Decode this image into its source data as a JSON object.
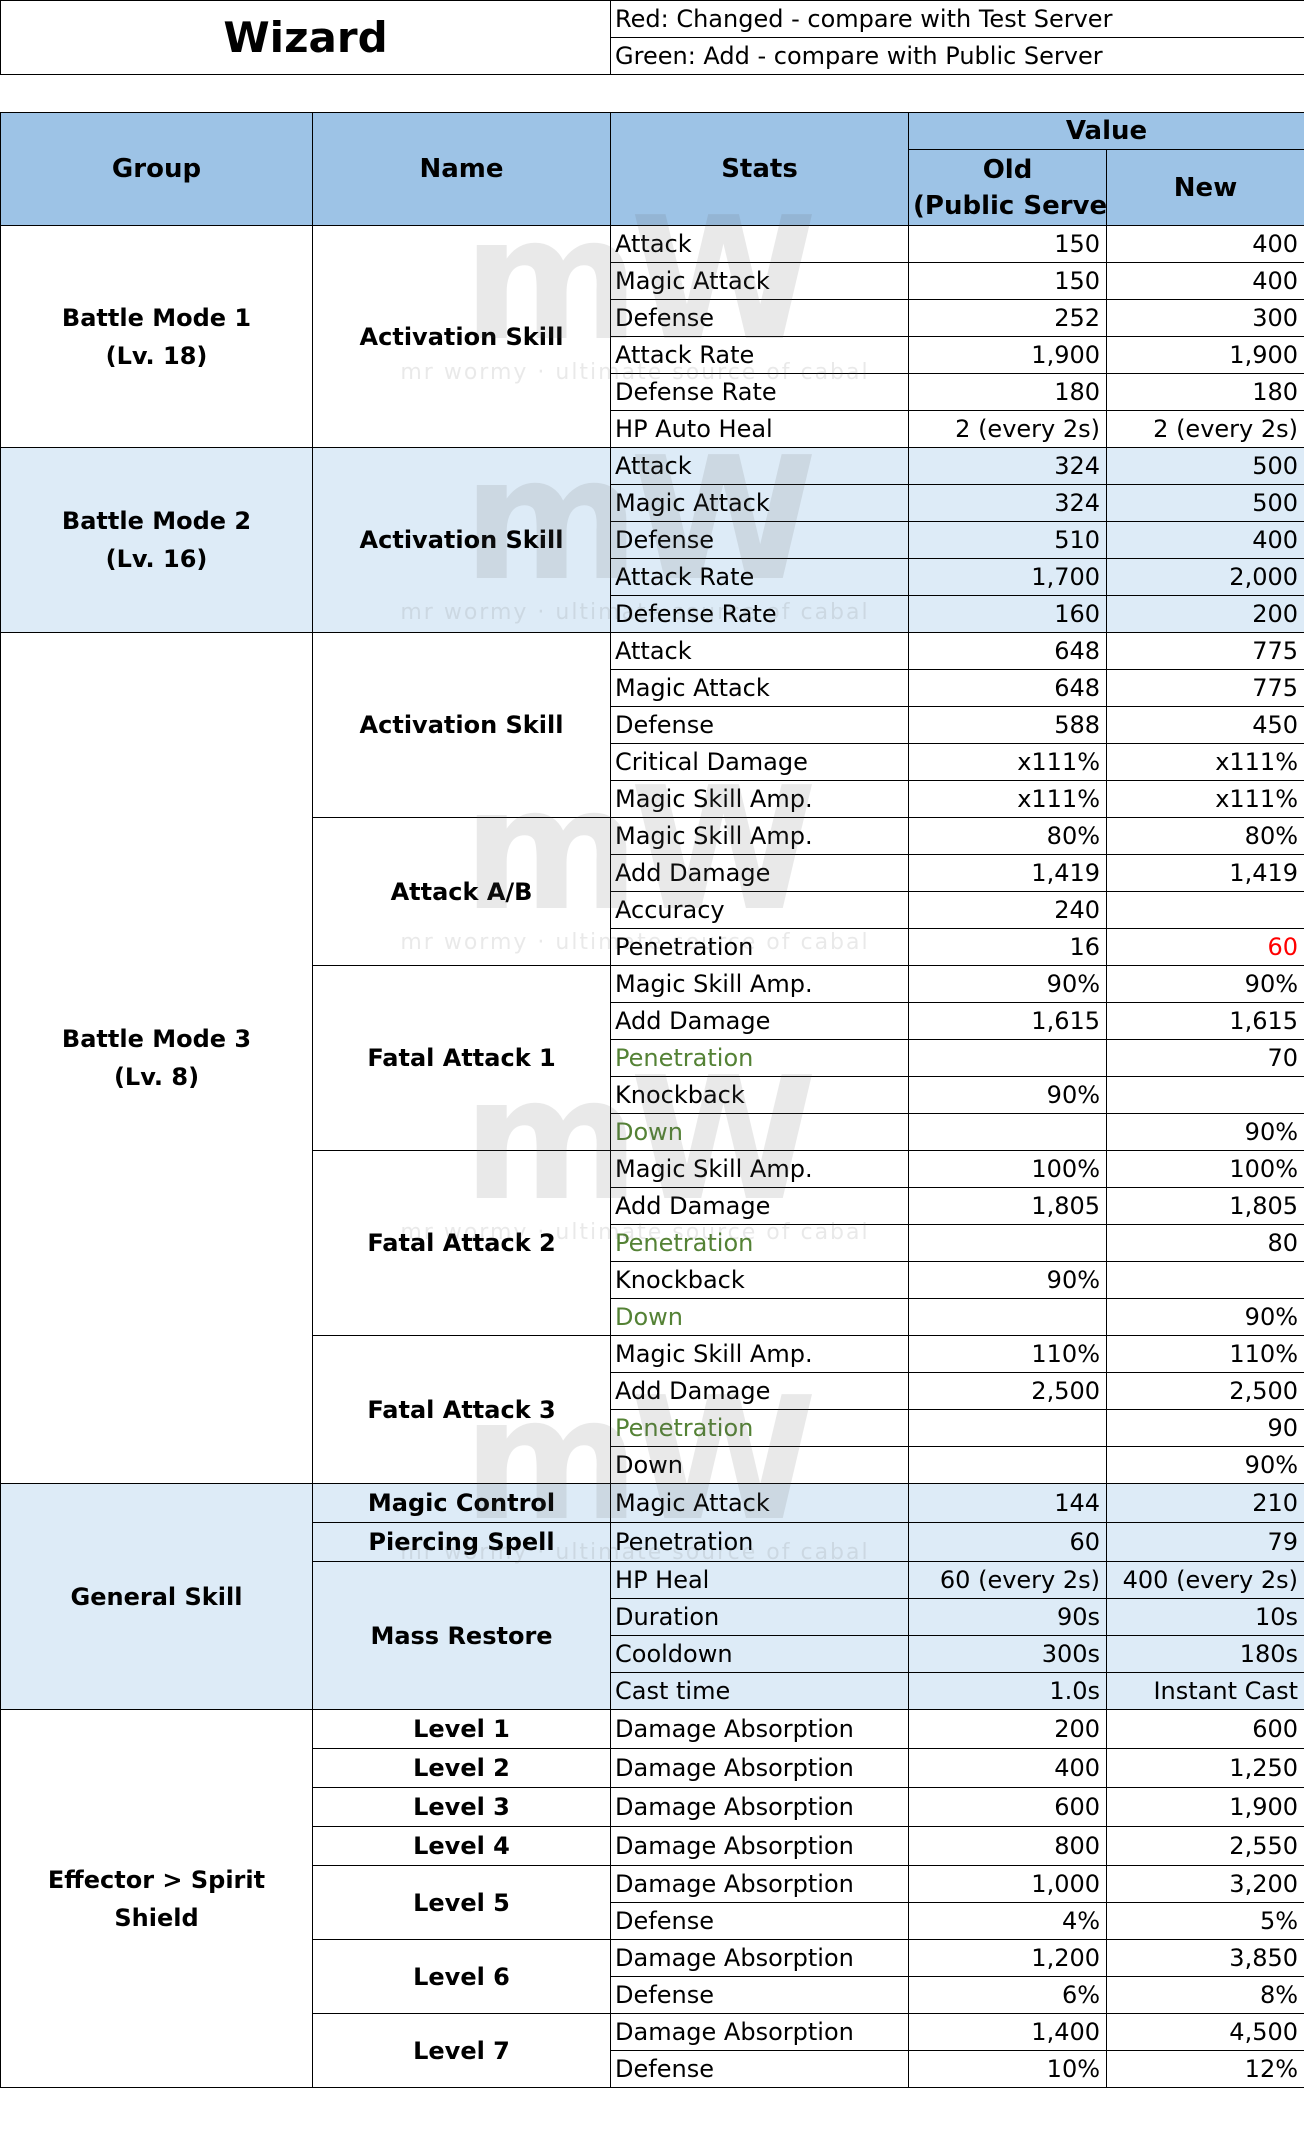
{
  "title": "Wizard",
  "legend": {
    "red": "Red: Changed - compare with Test Server",
    "green": "Green: Add - compare with Public Server"
  },
  "headers": {
    "group": "Group",
    "name": "Name",
    "stats": "Stats",
    "value": "Value",
    "old_line1": "Old",
    "old_line2": "(Public Server)",
    "new": "New"
  },
  "watermark": {
    "logo": "mW",
    "caption": "mr wormy · ultimate source of cabal"
  },
  "colors": {
    "header_bg": "#9dc3e6",
    "band_bg": "#ddebf7",
    "changed": "#ff0000",
    "added": "#548235"
  },
  "groups": {
    "bm1": {
      "line1": "Battle Mode 1",
      "line2": "(Lv. 18)"
    },
    "bm2": {
      "line1": "Battle Mode 2",
      "line2": "(Lv. 16)"
    },
    "bm3": {
      "line1": "Battle Mode 3",
      "line2": "(Lv. 8)"
    },
    "general": {
      "line1": "General Skill"
    },
    "effector": {
      "line1": "Effector > Spirit Shield"
    }
  },
  "names": {
    "bm1_activation": "Activation Skill",
    "bm2_activation": "Activation Skill",
    "bm3_activation": "Activation Skill",
    "attack_ab": "Attack A/B",
    "fatal1": "Fatal Attack 1",
    "fatal2": "Fatal Attack 2",
    "fatal3": "Fatal Attack 3",
    "magic_control": "Magic Control",
    "piercing_spell": "Piercing Spell",
    "mass_restore": "Mass Restore",
    "level1": "Level 1",
    "level2": "Level 2",
    "level3": "Level 3",
    "level4": "Level 4",
    "level5": "Level 5",
    "level6": "Level 6",
    "level7": "Level 7"
  },
  "rows": [
    {
      "stat": "Attack",
      "old": "150",
      "new": "400"
    },
    {
      "stat": "Magic Attack",
      "old": "150",
      "new": "400"
    },
    {
      "stat": "Defense",
      "old": "252",
      "new": "300"
    },
    {
      "stat": "Attack Rate",
      "old": "1,900",
      "new": "1,900"
    },
    {
      "stat": "Defense Rate",
      "old": "180",
      "new": "180"
    },
    {
      "stat": "HP Auto Heal",
      "old": "2 (every 2s)",
      "new": "2 (every 2s)"
    },
    {
      "stat": "Attack",
      "old": "324",
      "new": "500"
    },
    {
      "stat": "Magic Attack",
      "old": "324",
      "new": "500"
    },
    {
      "stat": "Defense",
      "old": "510",
      "new": "400"
    },
    {
      "stat": "Attack Rate",
      "old": "1,700",
      "new": "2,000"
    },
    {
      "stat": "Defense Rate",
      "old": "160",
      "new": "200"
    },
    {
      "stat": "Attack",
      "old": "648",
      "new": "775"
    },
    {
      "stat": "Magic Attack",
      "old": "648",
      "new": "775"
    },
    {
      "stat": "Defense",
      "old": "588",
      "new": "450"
    },
    {
      "stat": "Critical Damage",
      "old": "x111%",
      "new": "x111%"
    },
    {
      "stat": "Magic Skill Amp.",
      "old": "x111%",
      "new": "x111%"
    },
    {
      "stat": "Magic Skill Amp.",
      "old": "80%",
      "new": "80%"
    },
    {
      "stat": "Add Damage",
      "old": "1,419",
      "new": "1,419"
    },
    {
      "stat": "Accuracy",
      "old": "240",
      "new": ""
    },
    {
      "stat": "Penetration",
      "old": "16",
      "new": "60",
      "new_color": "red"
    },
    {
      "stat": "Magic Skill Amp.",
      "old": "90%",
      "new": "90%"
    },
    {
      "stat": "Add Damage",
      "old": "1,615",
      "new": "1,615"
    },
    {
      "stat": "Penetration",
      "old": "",
      "new": "70",
      "stat_color": "green"
    },
    {
      "stat": "Knockback",
      "old": "90%",
      "new": ""
    },
    {
      "stat": "Down",
      "old": "",
      "new": "90%",
      "stat_color": "green"
    },
    {
      "stat": "Magic Skill Amp.",
      "old": "100%",
      "new": "100%"
    },
    {
      "stat": "Add Damage",
      "old": "1,805",
      "new": "1,805"
    },
    {
      "stat": "Penetration",
      "old": "",
      "new": "80",
      "stat_color": "green"
    },
    {
      "stat": "Knockback",
      "old": "90%",
      "new": ""
    },
    {
      "stat": "Down",
      "old": "",
      "new": "90%",
      "stat_color": "green"
    },
    {
      "stat": "Magic Skill Amp.",
      "old": "110%",
      "new": "110%"
    },
    {
      "stat": "Add Damage",
      "old": "2,500",
      "new": "2,500"
    },
    {
      "stat": "Penetration",
      "old": "",
      "new": "90",
      "stat_color": "green"
    },
    {
      "stat": "Down",
      "old": "",
      "new": "90%"
    },
    {
      "stat": "Magic Attack",
      "old": "144",
      "new": "210"
    },
    {
      "stat": "Penetration",
      "old": "60",
      "new": "79"
    },
    {
      "stat": "HP Heal",
      "old": "60 (every 2s)",
      "new": "400 (every 2s)"
    },
    {
      "stat": "Duration",
      "old": "90s",
      "new": "10s"
    },
    {
      "stat": "Cooldown",
      "old": "300s",
      "new": "180s"
    },
    {
      "stat": "Cast time",
      "old": "1.0s",
      "new": "Instant Cast"
    },
    {
      "stat": "Damage Absorption",
      "old": "200",
      "new": "600"
    },
    {
      "stat": "Damage Absorption",
      "old": "400",
      "new": "1,250"
    },
    {
      "stat": "Damage Absorption",
      "old": "600",
      "new": "1,900"
    },
    {
      "stat": "Damage Absorption",
      "old": "800",
      "new": "2,550"
    },
    {
      "stat": "Damage Absorption",
      "old": "1,000",
      "new": "3,200"
    },
    {
      "stat": "Defense",
      "old": "4%",
      "new": "5%"
    },
    {
      "stat": "Damage Absorption",
      "old": "1,200",
      "new": "3,850"
    },
    {
      "stat": "Defense",
      "old": "6%",
      "new": "8%"
    },
    {
      "stat": "Damage Absorption",
      "old": "1,400",
      "new": "4,500"
    },
    {
      "stat": "Defense",
      "old": "10%",
      "new": "12%"
    }
  ]
}
